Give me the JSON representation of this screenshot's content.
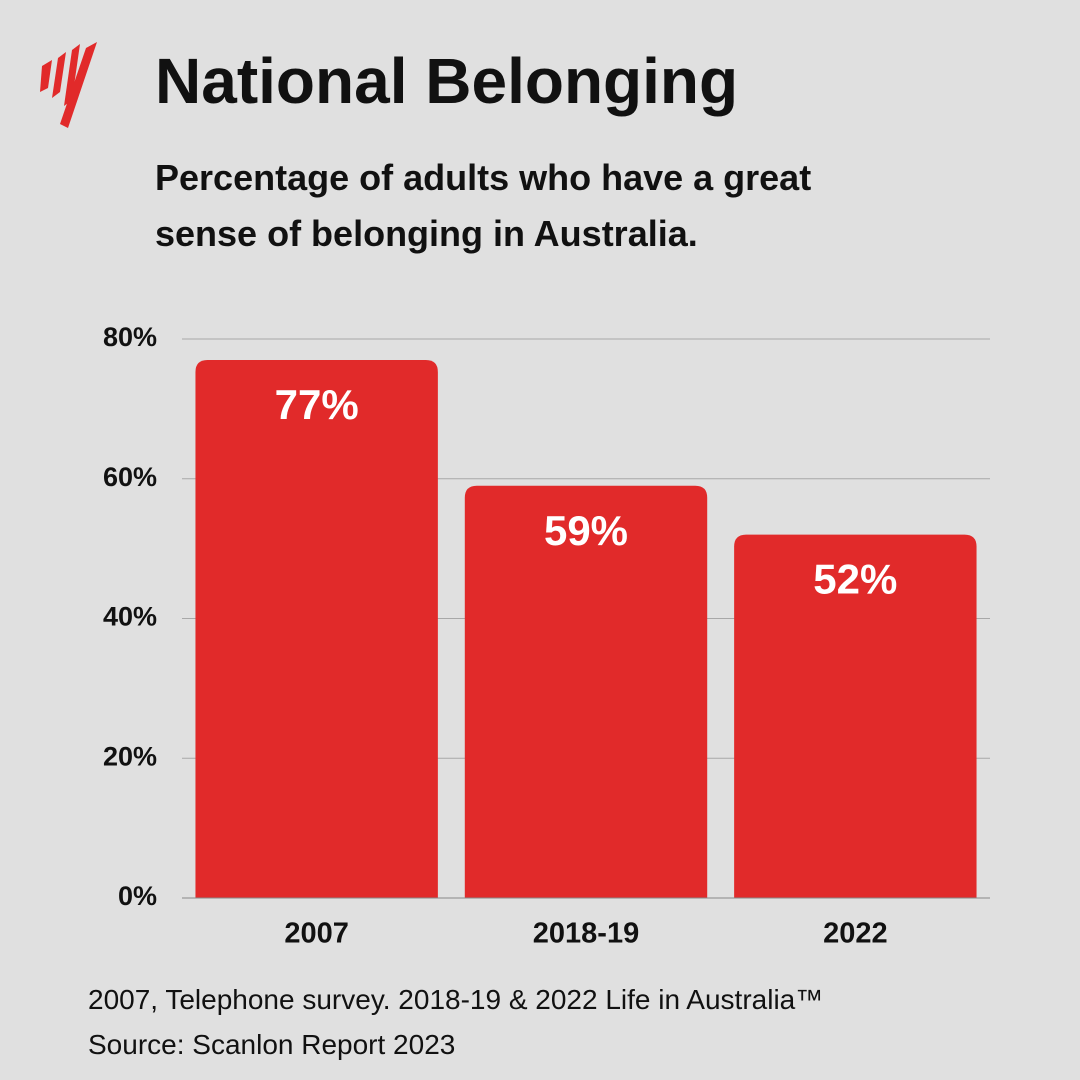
{
  "chart_data": {
    "type": "bar",
    "title": "National Belonging",
    "subtitle": "Percentage of adults who have a great sense of belonging in Australia.",
    "note": "2007, Telephone survey. 2018-19 & 2022 Life in Australia™",
    "source": "Source: Scanlon Report 2023",
    "categories": [
      "2007",
      "2018-19",
      "2022"
    ],
    "values": [
      77,
      59,
      52
    ],
    "value_labels": [
      "77%",
      "59%",
      "52%"
    ],
    "color": "#e12a2a",
    "ylim": [
      0,
      80
    ],
    "yticks": [
      {
        "value": 0,
        "label": "0%"
      },
      {
        "value": 20,
        "label": "20%"
      },
      {
        "value": 40,
        "label": "40%"
      },
      {
        "value": 60,
        "label": "60%"
      },
      {
        "value": 80,
        "label": "80%"
      }
    ],
    "grid": true
  }
}
